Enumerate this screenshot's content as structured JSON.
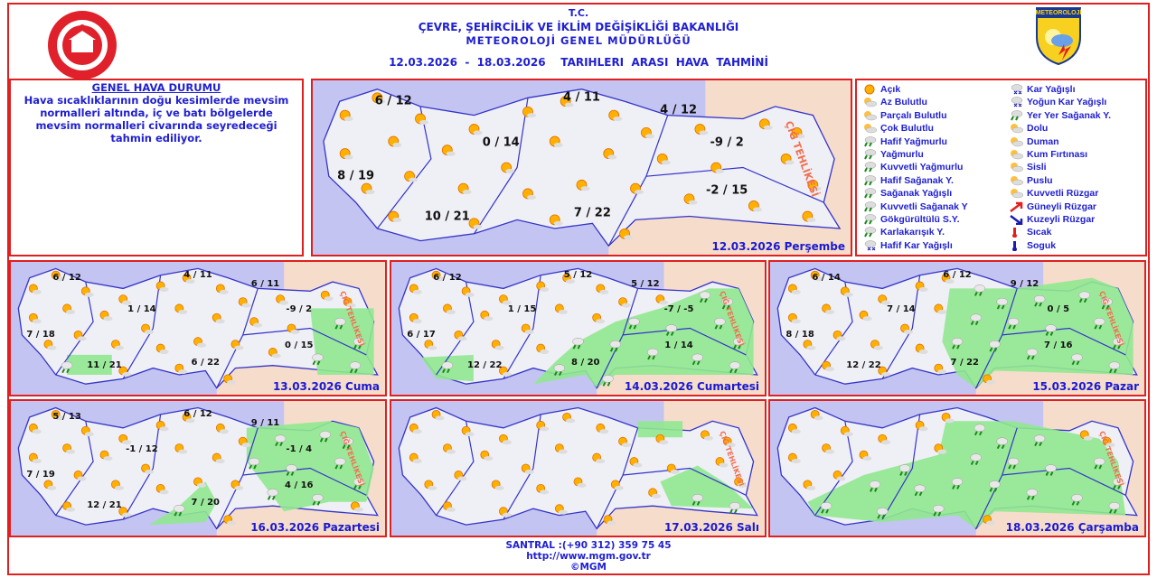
{
  "header": {
    "line1": "T.C.",
    "line2": "ÇEVRE, ŞEHİRCİLİK VE İKLİM DEĞİŞİKLİĞİ BAKANLIĞI",
    "line3": "METEOROLOJİ  GENEL  MÜDÜRLÜĞÜ",
    "period": "12.03.2026  -  18.03.2026    TARIHLERI  ARASI  HAVA  TAHMİNİ"
  },
  "logos": {
    "right_logo_text": "METEOROLOJİ"
  },
  "general": {
    "title": "GENEL HAVA DURUMU",
    "text": "Hava sıcaklıklarının doğu kesimlerde mevsim normalleri altında, iç ve batı bölgelerde mevsim normalleri civarında seyredeceği tahmin ediliyor."
  },
  "colors": {
    "frame": "#e02020",
    "text": "#2020d0",
    "sea": "#c4c4f2",
    "land": "#efeff6",
    "neighbor": "#f6dccb",
    "precip_area": "#90e890",
    "border": "#3434c8"
  },
  "avalanche_label": "ÇIĞ TEHLİKESİ",
  "panels": [
    {
      "date": "12.03.2026 Perşembe",
      "temps": [
        "6 / 12",
        "4 / 11",
        "4 / 12",
        "0 / 14",
        "-9 / 2",
        "8 / 19",
        "-2 / 15",
        "10 / 21",
        "7 / 22"
      ]
    },
    {
      "date": "13.03.2026 Cuma",
      "temps": [
        "6 / 12",
        "4 / 11",
        "6 / 11",
        "1 / 14",
        "-9 / 2",
        "7 / 18",
        "0 / 15",
        "11 / 21",
        "6 / 22"
      ]
    },
    {
      "date": "14.03.2026 Cumartesi",
      "temps": [
        "6 / 12",
        "5 / 12",
        "5 / 12",
        "1 / 15",
        "-7 / -5",
        "6 / 17",
        "1 / 14",
        "12 / 22",
        "8 / 20"
      ]
    },
    {
      "date": "15.03.2026 Pazar",
      "temps": [
        "6 / 14",
        "6 / 12",
        "9 / 12",
        "7 / 14",
        "0 / 5",
        "8 / 18",
        "7 / 16",
        "12 / 22",
        "7 / 22"
      ]
    },
    {
      "date": "16.03.2026 Pazartesi",
      "temps": [
        "5 / 13",
        "6 / 12",
        "9 / 11",
        "-1 / 12",
        "-1 / 4",
        "7 / 19",
        "4 / 16",
        "12 / 21",
        "7 / 20"
      ]
    },
    {
      "date": "17.03.2026 Salı",
      "temps": []
    },
    {
      "date": "18.03.2026 Çarşamba",
      "temps": []
    }
  ],
  "legend": [
    {
      "label": "Açık",
      "icon": "sun-icon"
    },
    {
      "label": "Az Bulutlu",
      "icon": "sun-small-cloud-icon"
    },
    {
      "label": "Parçalı Bulutlu",
      "icon": "partly-cloudy-icon"
    },
    {
      "label": "Çok Bulutlu",
      "icon": "cloudy-icon"
    },
    {
      "label": "Hafif Yağmurlu",
      "icon": "light-rain-icon"
    },
    {
      "label": "Yağmurlu",
      "icon": "rain-icon"
    },
    {
      "label": "Kuvvetli Yağmurlu",
      "icon": "heavy-rain-icon"
    },
    {
      "label": "Hafif Sağanak Y.",
      "icon": "light-shower-icon"
    },
    {
      "label": "Sağanak Yağışlı",
      "icon": "shower-icon"
    },
    {
      "label": "Kuvvetli Sağanak Y",
      "icon": "heavy-shower-icon"
    },
    {
      "label": "Gökgürültülü S.Y.",
      "icon": "thunderstorm-icon"
    },
    {
      "label": "Karlakarışık Y.",
      "icon": "sleet-icon"
    },
    {
      "label": "Hafif Kar Yağışlı",
      "icon": "light-snow-icon"
    },
    {
      "label": "Kar Yağışlı",
      "icon": "snow-icon"
    },
    {
      "label": "Yoğun Kar Yağışlı",
      "icon": "heavy-snow-icon"
    },
    {
      "label": "Yer Yer Sağanak Y.",
      "icon": "local-shower-icon"
    },
    {
      "label": "Dolu",
      "icon": "hail-icon"
    },
    {
      "label": "Duman",
      "icon": "smoke-icon"
    },
    {
      "label": "Kum Fırtınası",
      "icon": "sandstorm-icon"
    },
    {
      "label": "Sisli",
      "icon": "fog-icon"
    },
    {
      "label": "Puslu",
      "icon": "haze-icon"
    },
    {
      "label": "Kuvvetli Rüzgar",
      "icon": "strong-wind-icon"
    },
    {
      "label": "Güneyli Rüzgar",
      "icon": "south-wind-arrow-icon"
    },
    {
      "label": "Kuzeyli Rüzgar",
      "icon": "north-wind-arrow-icon"
    },
    {
      "label": "Sıcak",
      "icon": "hot-thermometer-icon"
    },
    {
      "label": "Soguk",
      "icon": "cold-thermometer-icon"
    }
  ],
  "footer": {
    "phone": "SANTRAL :(+90 312) 359 75 45",
    "url": "http://www.mgm.gov.tr",
    "copyright": "©MGM"
  }
}
